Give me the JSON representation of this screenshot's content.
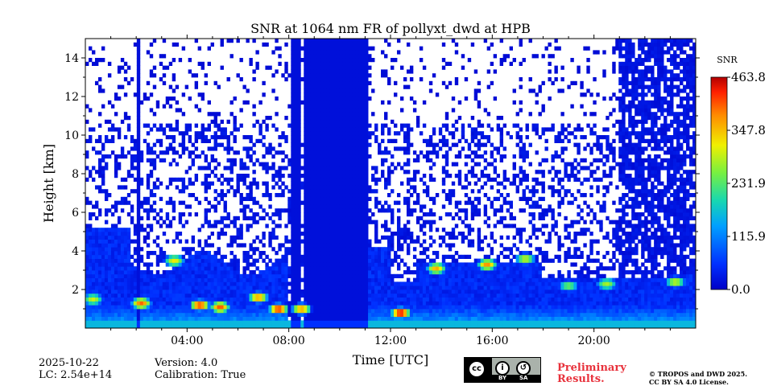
{
  "chart_data": {
    "type": "heatmap",
    "title": "SNR at 1064 nm FR of pollyxt_dwd at HPB",
    "xlabel": "Time [UTC]",
    "ylabel": "Height [km]",
    "xlim": [
      0,
      24
    ],
    "ylim": [
      0,
      15
    ],
    "x_ticks": [
      "04:00",
      "08:00",
      "12:00",
      "16:00",
      "20:00"
    ],
    "x_tick_values": [
      4,
      8,
      12,
      16,
      20
    ],
    "y_ticks": [
      "2",
      "4",
      "6",
      "8",
      "10",
      "12",
      "14"
    ],
    "y_tick_values": [
      2,
      4,
      6,
      8,
      10,
      12,
      14
    ],
    "colorbar": {
      "label": "SNR",
      "min": 0.0,
      "max": 463.8,
      "ticks": [
        "0.0",
        "115.9",
        "231.9",
        "347.8",
        "463.8"
      ],
      "tick_values": [
        0.0,
        115.9,
        231.9,
        347.8,
        463.8
      ],
      "colormap": "jet"
    },
    "colors": {
      "low": "#0a3fd6",
      "mid": "#14c8a0",
      "high": "#ff2a00",
      "nan": "#ffffff"
    },
    "signal_columns": [
      {
        "x0": 8.1,
        "x1": 8.5,
        "top": 15,
        "note": "full-height low-SNR column"
      },
      {
        "x0": 8.6,
        "x1": 11.1,
        "top": 15,
        "note": "full-height low-SNR column"
      },
      {
        "x0": 2.0,
        "x1": 2.15,
        "top": 15
      }
    ],
    "hotspots": [
      {
        "t": 0.3,
        "h": 1.5,
        "snr": 300
      },
      {
        "t": 2.2,
        "h": 1.3,
        "snr": 400
      },
      {
        "t": 3.5,
        "h": 3.5,
        "snr": 320
      },
      {
        "t": 4.5,
        "h": 1.2,
        "snr": 430
      },
      {
        "t": 5.3,
        "h": 1.1,
        "snr": 410
      },
      {
        "t": 6.8,
        "h": 1.6,
        "snr": 380
      },
      {
        "t": 7.6,
        "h": 1.0,
        "snr": 440
      },
      {
        "t": 8.5,
        "h": 1.0,
        "snr": 380
      },
      {
        "t": 12.4,
        "h": 0.8,
        "snr": 460
      },
      {
        "t": 13.8,
        "h": 3.1,
        "snr": 360
      },
      {
        "t": 15.8,
        "h": 3.3,
        "snr": 380
      },
      {
        "t": 17.3,
        "h": 3.6,
        "snr": 300
      },
      {
        "t": 19.0,
        "h": 2.2,
        "snr": 250
      },
      {
        "t": 20.5,
        "h": 2.3,
        "snr": 280
      },
      {
        "t": 23.2,
        "h": 2.4,
        "snr": 300
      }
    ]
  },
  "footer": {
    "date": "2025-10-22",
    "lc": "LC: 2.54e+14",
    "version": "Version: 4.0",
    "calibration": "Calibration: True",
    "preliminary_line1": "Preliminary",
    "preliminary_line2": "Results.",
    "copyright_line1": "© TROPOS and DWD 2025.",
    "copyright_line2": "CC BY SA 4.0 License.",
    "license_badge": {
      "cc": "cc",
      "by": "BY",
      "sa": "SA"
    }
  }
}
